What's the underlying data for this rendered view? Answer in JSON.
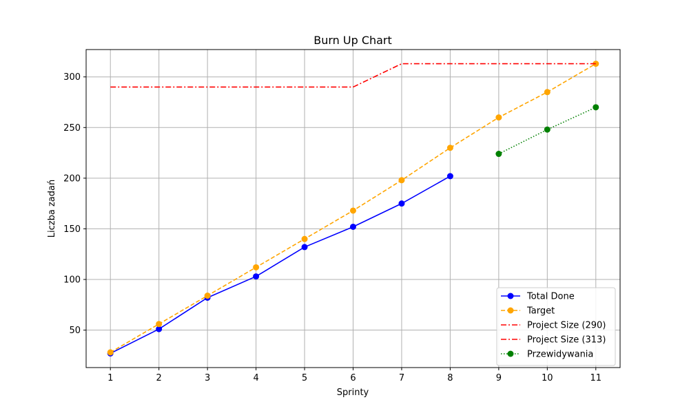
{
  "chart_data": {
    "type": "line",
    "title": "Burn Up Chart",
    "xlabel": "Sprinty",
    "ylabel": "Liczba zadań",
    "xlim": [
      0.5,
      11.5
    ],
    "ylim": [
      13,
      327
    ],
    "xticks": [
      1,
      2,
      3,
      4,
      5,
      6,
      7,
      8,
      9,
      10,
      11
    ],
    "yticks": [
      50,
      100,
      150,
      200,
      250,
      300
    ],
    "grid": true,
    "legend_position": "lower-right",
    "series": [
      {
        "name": "Total Done",
        "color": "#0000ff",
        "line_style": "solid",
        "marker": "circle",
        "x": [
          1,
          2,
          3,
          4,
          5,
          6,
          7,
          8
        ],
        "y": [
          27,
          51,
          82,
          103,
          132,
          152,
          175,
          202
        ]
      },
      {
        "name": "Target",
        "color": "#ffa500",
        "line_style": "dashed",
        "marker": "circle",
        "x": [
          1,
          2,
          3,
          4,
          5,
          6,
          7,
          8,
          9,
          10,
          11
        ],
        "y": [
          28,
          56,
          84,
          112,
          140,
          168,
          198,
          230,
          260,
          285,
          313
        ]
      },
      {
        "name": "Project Size (290)",
        "color": "#ff0000",
        "line_style": "dashdot",
        "marker": "none",
        "x": [
          1,
          2,
          3,
          4,
          5,
          6
        ],
        "y": [
          290,
          290,
          290,
          290,
          290,
          290
        ]
      },
      {
        "name": "Project Size (313)",
        "color": "#ff0000",
        "line_style": "dashdot",
        "marker": "none",
        "x": [
          6,
          7,
          8,
          9,
          10,
          11
        ],
        "y": [
          290,
          313,
          313,
          313,
          313,
          313
        ]
      },
      {
        "name": "Przewidywania",
        "color": "#008000",
        "line_style": "dotted",
        "marker": "circle",
        "x": [
          9,
          10,
          11
        ],
        "y": [
          224,
          248,
          270
        ]
      }
    ]
  }
}
